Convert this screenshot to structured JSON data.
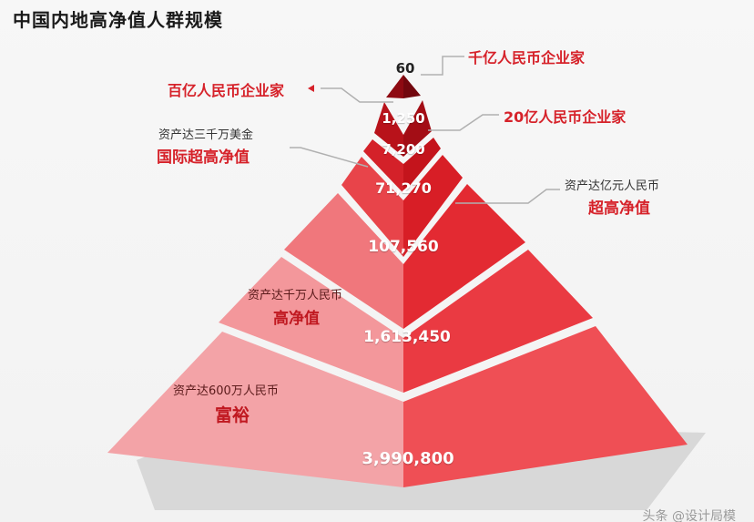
{
  "title": "中国内地高净值人群规模",
  "colors": {
    "accent_red": "#d6222a",
    "tier_dark": "#7a0a12",
    "tier_light": "#f5a0a4"
  },
  "tiers": [
    {
      "value": "60"
    },
    {
      "value": "1,250"
    },
    {
      "value": "7,200"
    },
    {
      "value": "71,270"
    },
    {
      "value": "107,560"
    },
    {
      "value": "1,613,450"
    },
    {
      "value": "3,990,800"
    }
  ],
  "callouts": {
    "qianyi": "千亿人民币企业家",
    "baiyi": "百亿人民币企业家",
    "ershiyi": "20亿人民币企业家",
    "intl_sub": "资产达三千万美金",
    "intl_main": "国际超高净值",
    "ultra_sub": "资产达亿元人民币",
    "ultra_main": "超高净值",
    "high_sub": "资产达千万人民币",
    "high_main": "高净值",
    "wealthy_sub": "资产达600万人民币",
    "wealthy_main": "富裕"
  },
  "watermark": "头条 @设计局模"
}
